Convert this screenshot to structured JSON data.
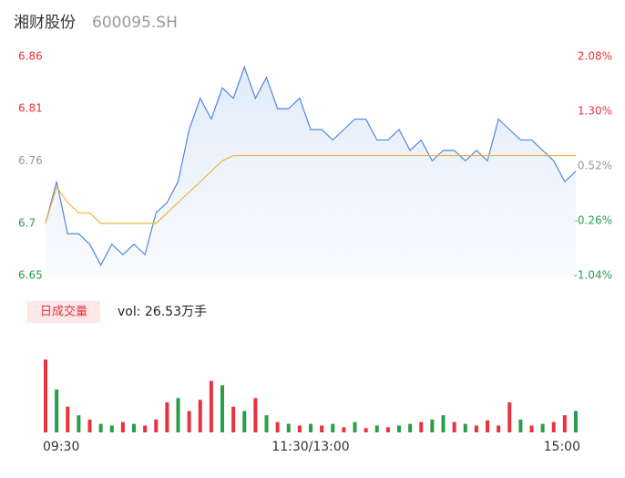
{
  "chart_data": {
    "type": "line",
    "title": "湘财股份",
    "subtitle": "600095.SH",
    "x": [
      0,
      5,
      10,
      15,
      20,
      25,
      30,
      35,
      40,
      45,
      50,
      55,
      60,
      65,
      70,
      75,
      80,
      85,
      90,
      95,
      100,
      105,
      110,
      115,
      120,
      125,
      130,
      135,
      140,
      145,
      150,
      155,
      160,
      165,
      170,
      175,
      180,
      185,
      190,
      195,
      200,
      205,
      210,
      215,
      220,
      225,
      230,
      235,
      240
    ],
    "xlim": [
      0,
      240
    ],
    "xticks": [
      {
        "value": 0,
        "label": "09:30"
      },
      {
        "value": 120,
        "label": "11:30/13:00"
      },
      {
        "value": 240,
        "label": "15:00"
      }
    ],
    "series": [
      {
        "name": "price",
        "color": "#4f86e8",
        "values": [
          6.7,
          6.74,
          6.69,
          6.69,
          6.68,
          6.66,
          6.68,
          6.67,
          6.68,
          6.67,
          6.71,
          6.72,
          6.74,
          6.79,
          6.82,
          6.8,
          6.83,
          6.82,
          6.85,
          6.82,
          6.84,
          6.81,
          6.81,
          6.82,
          6.79,
          6.79,
          6.78,
          6.79,
          6.8,
          6.8,
          6.78,
          6.78,
          6.79,
          6.77,
          6.78,
          6.76,
          6.77,
          6.77,
          6.76,
          6.77,
          6.76,
          6.8,
          6.79,
          6.78,
          6.78,
          6.77,
          6.76,
          6.74,
          6.75
        ]
      },
      {
        "name": "average",
        "color": "#f0b43c",
        "values": [
          6.7,
          6.735,
          6.72,
          6.71,
          6.71,
          6.7,
          6.7,
          6.7,
          6.7,
          6.7,
          6.7,
          6.71,
          6.72,
          6.73,
          6.74,
          6.75,
          6.76,
          6.765,
          6.765,
          6.765,
          6.765,
          6.765,
          6.765,
          6.765,
          6.765,
          6.765,
          6.765,
          6.765,
          6.765,
          6.765,
          6.765,
          6.765,
          6.765,
          6.765,
          6.765,
          6.765,
          6.765,
          6.765,
          6.765,
          6.765,
          6.765,
          6.765,
          6.765,
          6.765,
          6.765,
          6.765,
          6.765,
          6.765,
          6.765
        ]
      }
    ],
    "ylim": [
      6.65,
      6.86
    ],
    "yticks": [
      6.65,
      6.7,
      6.76,
      6.81,
      6.86
    ],
    "ytick_colors": [
      "#2a9d4a",
      "#2a9d4a",
      "#999999",
      "#e8323c",
      "#e8323c"
    ],
    "y2lim": [
      -1.04,
      2.08
    ],
    "y2ticks": [
      {
        "value": -1.04,
        "label": "-1.04%"
      },
      {
        "value": -0.26,
        "label": "-0.26%"
      },
      {
        "value": 0.52,
        "label": "0.52%"
      },
      {
        "value": 1.3,
        "label": "1.30%"
      },
      {
        "value": 2.08,
        "label": "2.08%"
      }
    ],
    "y2tick_colors": [
      "#2a9d4a",
      "#2a9d4a",
      "#999999",
      "#e8323c",
      "#e8323c"
    ],
    "volume": {
      "legend": "日成交量",
      "label": "vol: 26.53万手",
      "ylim": [
        0,
        100
      ],
      "values": [
        85,
        50,
        30,
        20,
        15,
        10,
        8,
        12,
        10,
        8,
        15,
        35,
        40,
        25,
        38,
        60,
        55,
        30,
        25,
        40,
        20,
        12,
        10,
        8,
        10,
        8,
        10,
        6,
        12,
        5,
        8,
        6,
        8,
        10,
        12,
        15,
        20,
        12,
        10,
        8,
        14,
        8,
        35,
        15,
        8,
        10,
        12,
        20,
        25
      ],
      "colors": [
        "#e8323c",
        "#2a9d4a",
        "#e8323c",
        "#2a9d4a",
        "#e8323c",
        "#2a9d4a",
        "#2a9d4a",
        "#e8323c",
        "#2a9d4a",
        "#e8323c",
        "#e8323c",
        "#e8323c",
        "#2a9d4a",
        "#e8323c",
        "#e8323c",
        "#e8323c",
        "#2a9d4a",
        "#e8323c",
        "#2a9d4a",
        "#e8323c",
        "#2a9d4a",
        "#e8323c",
        "#2a9d4a",
        "#e8323c",
        "#2a9d4a",
        "#e8323c",
        "#2a9d4a",
        "#e8323c",
        "#2a9d4a",
        "#e8323c",
        "#2a9d4a",
        "#e8323c",
        "#2a9d4a",
        "#2a9d4a",
        "#e8323c",
        "#2a9d4a",
        "#2a9d4a",
        "#e8323c",
        "#2a9d4a",
        "#e8323c",
        "#e8323c",
        "#e8323c",
        "#e8323c",
        "#2a9d4a",
        "#e8323c",
        "#2a9d4a",
        "#e8323c",
        "#e8323c",
        "#2a9d4a"
      ]
    }
  }
}
